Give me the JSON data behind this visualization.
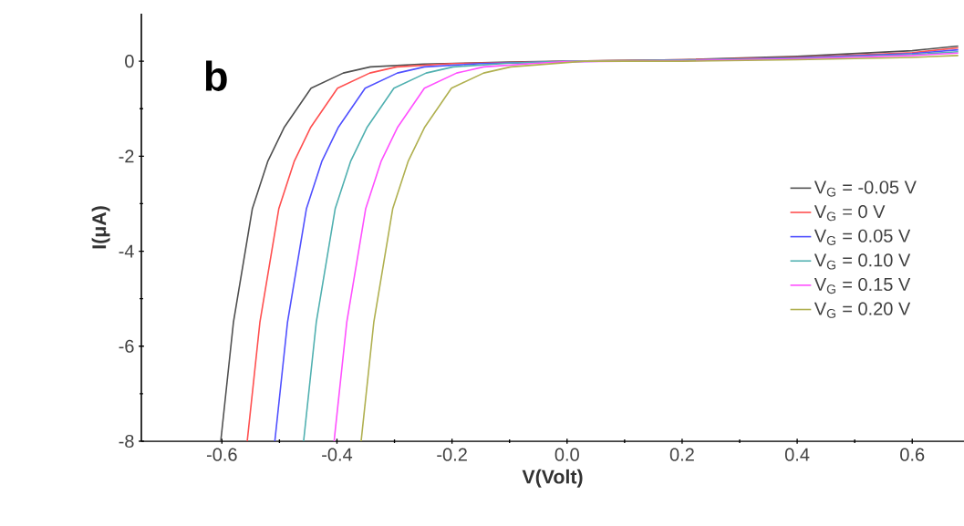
{
  "chart_data": {
    "type": "line",
    "xlabel": "V(Volt)",
    "ylabel": "I(μA)",
    "annotations": [
      "b"
    ],
    "xlim": [
      -0.74,
      0.69
    ],
    "ylim": [
      -8,
      1
    ],
    "xticks": [
      -0.6,
      -0.4,
      -0.2,
      {
        "value": 0,
        "label": "0.0"
      },
      0.2,
      0.4,
      0.6
    ],
    "yticks": [
      -8,
      -6,
      -4,
      -2,
      0
    ],
    "legend": "right",
    "grid": false,
    "marker": "none",
    "line_style": "solid",
    "series": [
      {
        "name": "V$_{G}$ = -0.05 V",
        "color": "#505050",
        "x": [
          -0.602,
          -0.58,
          -0.547,
          -0.52,
          -0.492,
          -0.445,
          -0.389,
          -0.342,
          -0.25,
          -0.1,
          0,
          0.2,
          0.4,
          0.6,
          0.68
        ],
        "values": [
          -8,
          -5.5,
          -3.1,
          -2.1,
          -1.4,
          -0.57,
          -0.25,
          -0.12,
          -0.06,
          -0.02,
          0,
          0.03,
          0.1,
          0.22,
          0.32
        ]
      },
      {
        "name": "V$_{G}$ = 0 V",
        "color": "#ff5050",
        "x": [
          -0.556,
          -0.534,
          -0.501,
          -0.474,
          -0.446,
          -0.399,
          -0.343,
          -0.296,
          -0.2,
          -0.05,
          0,
          0.2,
          0.4,
          0.6,
          0.68
        ],
        "values": [
          -8,
          -5.5,
          -3.1,
          -2.1,
          -1.4,
          -0.57,
          -0.25,
          -0.12,
          -0.05,
          -0.02,
          0,
          0.03,
          0.08,
          0.18,
          0.28
        ]
      },
      {
        "name": "V$_{G}$ = 0.05 V",
        "color": "#5050ff",
        "x": [
          -0.508,
          -0.486,
          -0.453,
          -0.426,
          -0.398,
          -0.351,
          -0.295,
          -0.248,
          -0.15,
          0,
          0.2,
          0.4,
          0.6,
          0.68
        ],
        "values": [
          -8,
          -5.5,
          -3.1,
          -2.1,
          -1.4,
          -0.57,
          -0.25,
          -0.12,
          -0.05,
          -0.01,
          0.02,
          0.07,
          0.16,
          0.24
        ]
      },
      {
        "name": "V$_{G}$ = 0.10 V",
        "color": "#50b0b0",
        "x": [
          -0.458,
          -0.436,
          -0.403,
          -0.376,
          -0.348,
          -0.301,
          -0.245,
          -0.198,
          -0.1,
          0,
          0.2,
          0.4,
          0.6,
          0.68
        ],
        "values": [
          -8,
          -5.5,
          -3.1,
          -2.1,
          -1.4,
          -0.57,
          -0.25,
          -0.12,
          -0.04,
          0,
          0.02,
          0.06,
          0.14,
          0.2
        ]
      },
      {
        "name": "V$_{G}$ = 0.15 V",
        "color": "#ff50ff",
        "x": [
          -0.405,
          -0.383,
          -0.35,
          -0.323,
          -0.295,
          -0.248,
          -0.192,
          -0.145,
          -0.05,
          0,
          0.2,
          0.4,
          0.6,
          0.68
        ],
        "values": [
          -8,
          -5.5,
          -3.1,
          -2.1,
          -1.4,
          -0.57,
          -0.25,
          -0.12,
          -0.04,
          -0.01,
          0.01,
          0.05,
          0.12,
          0.17
        ]
      },
      {
        "name": "V$_{G}$ = 0.20 V",
        "color": "#b0b050",
        "x": [
          -0.358,
          -0.336,
          -0.303,
          -0.276,
          -0.248,
          -0.201,
          -0.145,
          -0.098,
          0.03,
          0.2,
          0.4,
          0.6,
          0.68
        ],
        "values": [
          -8,
          -5.5,
          -3.1,
          -2.1,
          -1.4,
          -0.57,
          -0.25,
          -0.12,
          0,
          0,
          0.03,
          0.08,
          0.12
        ]
      }
    ]
  }
}
